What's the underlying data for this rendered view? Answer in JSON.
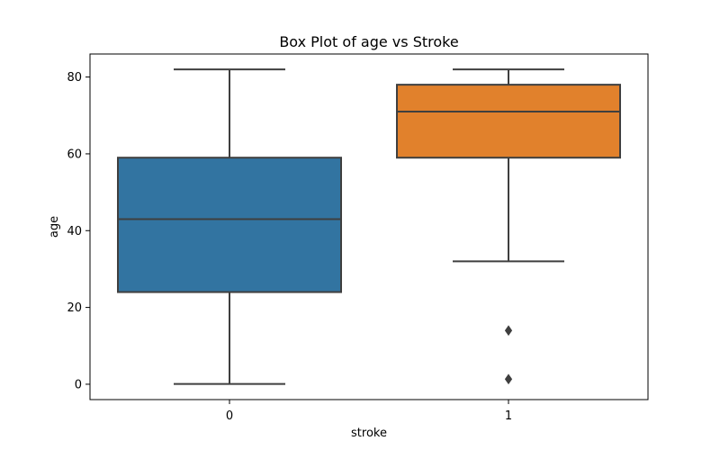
{
  "chart_data": {
    "type": "box",
    "title": "Box Plot of age vs Stroke",
    "xlabel": "stroke",
    "ylabel": "age",
    "ylim": [
      -4,
      86
    ],
    "yticks": [
      0,
      20,
      40,
      60,
      80
    ],
    "grid": false,
    "categories": [
      "0",
      "1"
    ],
    "boxes": [
      {
        "category": "0",
        "whisker_low": 0.08,
        "q1": 24,
        "median": 43,
        "q3": 59,
        "whisker_high": 82,
        "outliers": [],
        "color": "#3274a1"
      },
      {
        "category": "1",
        "whisker_low": 32,
        "q1": 59,
        "median": 71,
        "q3": 78,
        "whisker_high": 82,
        "outliers": [
          14,
          1.32
        ],
        "color": "#e1812c"
      }
    ]
  }
}
